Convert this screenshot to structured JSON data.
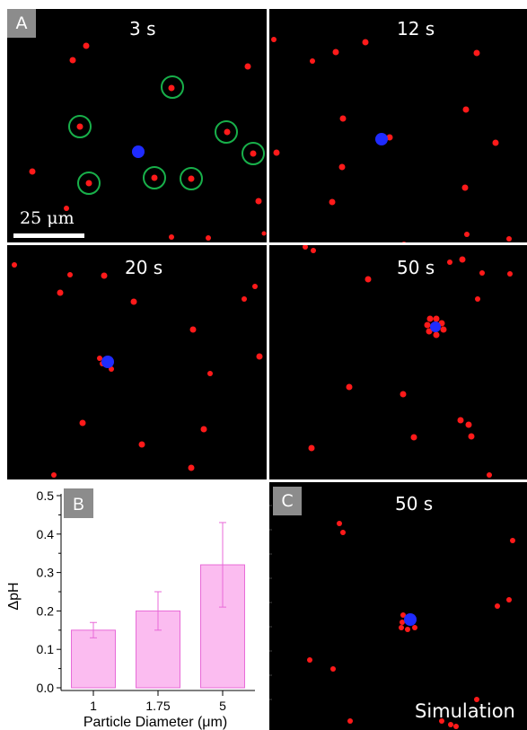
{
  "figure": {
    "panel_a": {
      "letter": "A",
      "scale_label": "25 μm",
      "frames": [
        {
          "time": "3 s"
        },
        {
          "time": "12 s"
        },
        {
          "time": "20 s"
        },
        {
          "time": "50 s"
        }
      ]
    },
    "panel_c": {
      "letter": "C",
      "time": "50 s",
      "label": "Simulation"
    },
    "colors": {
      "particle": "#ff1a1a",
      "pump": "#1f2bff",
      "highlight_circle": "#18b04a",
      "bar_fill": "#fbbcf0",
      "bar_edge": "#e86ad8"
    }
  },
  "chart_data": {
    "type": "bar",
    "panel_letter": "B",
    "categories": [
      "1",
      "1.75",
      "5"
    ],
    "values": [
      0.15,
      0.2,
      0.32
    ],
    "errors_lower": [
      0.13,
      0.15,
      0.21
    ],
    "errors_upper": [
      0.17,
      0.25,
      0.43
    ],
    "xlabel": "Particle Diameter (μm)",
    "ylabel": "ΔpH",
    "ylim": [
      0,
      0.5
    ],
    "yticks": [
      "0.0",
      "0.1",
      "0.2",
      "0.3",
      "0.4",
      "0.5"
    ],
    "grid": false
  }
}
